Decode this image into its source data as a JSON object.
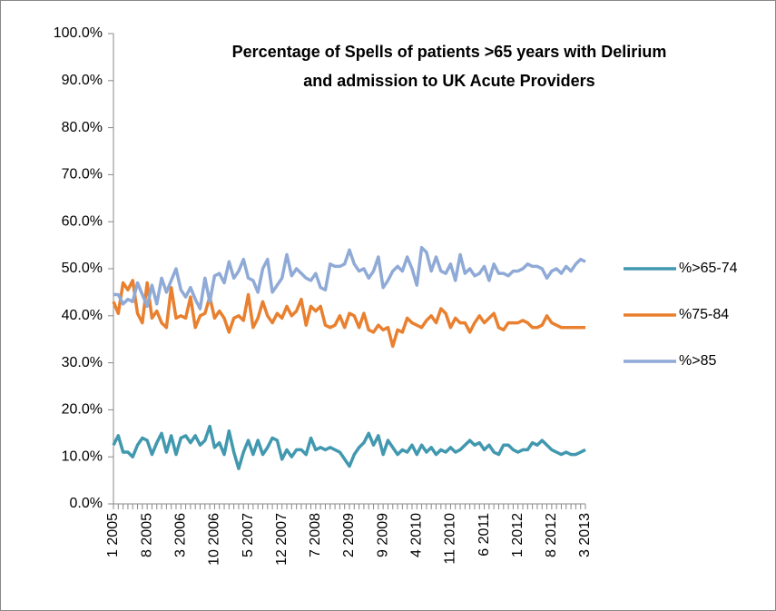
{
  "chart_data": {
    "type": "line",
    "title": [
      "Percentage of Spells of patients >65 years with Delirium",
      "and admission to UK Acute Providers"
    ],
    "categories": [
      "1 2005",
      null,
      null,
      null,
      null,
      null,
      null,
      "8 2005",
      null,
      null,
      null,
      null,
      null,
      null,
      "3 2006",
      null,
      null,
      null,
      null,
      null,
      null,
      "10 2006",
      null,
      null,
      null,
      null,
      null,
      null,
      "5 2007",
      null,
      null,
      null,
      null,
      null,
      null,
      "12 2007",
      null,
      null,
      null,
      null,
      null,
      null,
      "7 2008",
      null,
      null,
      null,
      null,
      null,
      null,
      "2 2009",
      null,
      null,
      null,
      null,
      null,
      null,
      "9 2009",
      null,
      null,
      null,
      null,
      null,
      null,
      "4 2010",
      null,
      null,
      null,
      null,
      null,
      null,
      "11 2010",
      null,
      null,
      null,
      null,
      null,
      null,
      "6 2011",
      null,
      null,
      null,
      null,
      null,
      null,
      "1 2012",
      null,
      null,
      null,
      null,
      null,
      null,
      "8 2012",
      null,
      null,
      null,
      null,
      null,
      null,
      "3 2013"
    ],
    "series": [
      {
        "name": "%>65-74",
        "color": "#4198af",
        "values": [
          12.5,
          14.5,
          11,
          11,
          10,
          12.5,
          14,
          13.5,
          10.5,
          13,
          15,
          11,
          14.5,
          10.5,
          14,
          14.5,
          13,
          14.5,
          12.5,
          13.5,
          16.5,
          12,
          13,
          10.5,
          15.5,
          11,
          7.5,
          11,
          13.5,
          10.5,
          13.5,
          10.5,
          12,
          14,
          13.5,
          9.5,
          11.5,
          10,
          11.5,
          11.5,
          10.5,
          14,
          11.5,
          12,
          11.5,
          12,
          11.5,
          11,
          9.5,
          8,
          10.5,
          12,
          13,
          15,
          12.5,
          14.5,
          10.5,
          13.5,
          12,
          10.5,
          11.5,
          11,
          12.5,
          10.5,
          12.5,
          11,
          12,
          10.5,
          11.5,
          11,
          12,
          11,
          11.5,
          12.5,
          13.5,
          12.5,
          13,
          11.5,
          12.5,
          11,
          10.5,
          12.5,
          12.5,
          11.5,
          11,
          11.5,
          11.5,
          13,
          12.5,
          13.5,
          12.5,
          11.5,
          11,
          10.5,
          11,
          10.5,
          10.5,
          11,
          11.5
        ]
      },
      {
        "name": "%75-84",
        "color": "#e8802f",
        "values": [
          43,
          40.5,
          47,
          45.5,
          47.5,
          40.5,
          38.5,
          47,
          39.5,
          41,
          38.5,
          37.5,
          46,
          39.5,
          40,
          39.5,
          44,
          37.5,
          40,
          40.5,
          44,
          39.5,
          41,
          39.5,
          36.5,
          39.5,
          40,
          39,
          44.5,
          37.5,
          39.5,
          43,
          40,
          38.5,
          40.5,
          39.5,
          42,
          40,
          41,
          43.5,
          38,
          42,
          41,
          42,
          38,
          37.5,
          38,
          40,
          37.5,
          40.5,
          40,
          37.5,
          40.5,
          37,
          36.5,
          38,
          37,
          37.5,
          33.5,
          37,
          36.5,
          39.5,
          38.5,
          38,
          37.5,
          39,
          40,
          38.5,
          41.5,
          40.5,
          37.5,
          39.5,
          38.5,
          38.5,
          36.5,
          38.5,
          40,
          38.5,
          39.5,
          40.5,
          37.5,
          37,
          38.5,
          38.5,
          38.5,
          39,
          38.5,
          37.5,
          37.5,
          38,
          40,
          38.5,
          38,
          37.5,
          37.5,
          37.5,
          37.5,
          37.5,
          37.5
        ]
      },
      {
        "name": "%>85",
        "color": "#8faad6",
        "values": [
          44.5,
          44.5,
          42.5,
          43.5,
          43,
          47,
          44.5,
          42,
          46.5,
          42.5,
          48,
          45,
          47.5,
          50,
          45.5,
          44,
          46,
          43.5,
          41.5,
          48,
          43,
          48.5,
          49,
          47,
          51.5,
          48,
          49.5,
          52,
          48,
          47.5,
          45,
          50,
          52,
          45,
          46.5,
          48,
          53,
          48.5,
          50,
          49,
          48,
          47.5,
          49,
          46,
          45.5,
          51,
          50.5,
          50.5,
          51,
          54,
          51,
          49.5,
          50,
          48,
          49.5,
          52.5,
          46,
          47.5,
          49.5,
          50.5,
          49.5,
          52.5,
          50,
          46.5,
          54.5,
          53.5,
          49.5,
          52.5,
          49.5,
          49,
          51,
          47.5,
          53,
          49,
          50,
          48.5,
          49,
          50.5,
          47.5,
          51,
          49,
          49,
          48.5,
          49.5,
          49.5,
          50,
          51,
          50.5,
          50.5,
          50,
          48,
          49.5,
          50,
          49,
          50.5,
          49.5,
          51,
          52,
          51.5
        ]
      }
    ],
    "ylim": [
      0,
      100
    ],
    "yticks": [
      {
        "value": 0,
        "label": "0.0%"
      },
      {
        "value": 10,
        "label": "10.0%"
      },
      {
        "value": 20,
        "label": "20.0%"
      },
      {
        "value": 30,
        "label": "30.0%"
      },
      {
        "value": 40,
        "label": "40.0%"
      },
      {
        "value": 50,
        "label": "50.0%"
      },
      {
        "value": 60,
        "label": "60.0%"
      },
      {
        "value": 70,
        "label": "70.0%"
      },
      {
        "value": 80,
        "label": "80.0%"
      },
      {
        "value": 90,
        "label": "90.0%"
      },
      {
        "value": 100,
        "label": "100.0%"
      }
    ],
    "grid": false,
    "legend": "right"
  }
}
